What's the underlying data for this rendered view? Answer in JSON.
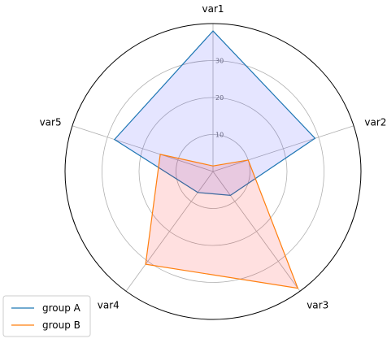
{
  "chart_data": {
    "type": "radar",
    "categories": [
      "var1",
      "var2",
      "var3",
      "var4",
      "var5"
    ],
    "rlim": [
      0,
      40
    ],
    "ticks": [
      10,
      20,
      30
    ],
    "tick_labels": [
      "10",
      "20",
      "30"
    ],
    "grid": true,
    "legend_position": "bottom-left",
    "series": [
      {
        "name": "group A",
        "values": [
          38,
          29,
          8,
          7,
          28
        ],
        "color": "#1f77b4",
        "fill": "#0000ff",
        "fill_opacity": 0.1
      },
      {
        "name": "group B",
        "values": [
          1.5,
          10,
          39,
          31,
          15
        ],
        "color": "#ff7f0e",
        "fill": "#ff0000",
        "fill_opacity": 0.12
      }
    ]
  }
}
